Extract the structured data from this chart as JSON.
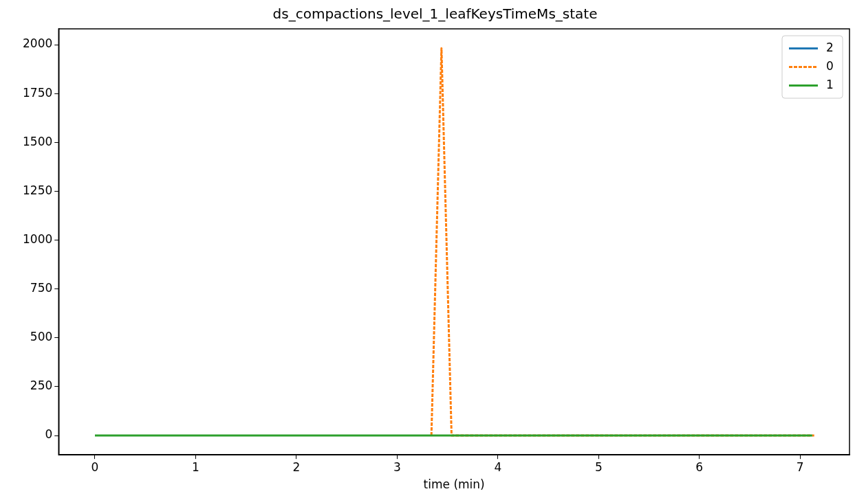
{
  "chart_data": {
    "type": "line",
    "title": "ds_compactions_level_1_leafKeysTimeMs_state",
    "xlabel": "time (min)",
    "xlim": [
      -0.36,
      7.49
    ],
    "xticks": [
      0,
      1,
      2,
      3,
      4,
      5,
      6,
      7
    ],
    "ylim": [
      -99,
      2081
    ],
    "yticks": [
      0,
      250,
      500,
      750,
      1000,
      1250,
      1500,
      1750,
      2000
    ],
    "grid": false,
    "legend": "top right",
    "series": [
      {
        "name": "2",
        "color": "#1f77b4",
        "line_style": "solid"
      },
      {
        "name": "0",
        "color": "#ff7f0e",
        "line_style": "dashed",
        "x": [
          3.34,
          3.44,
          3.54,
          7.14
        ],
        "values": [
          0,
          1982,
          0,
          0
        ]
      },
      {
        "name": "1",
        "color": "#2ca02c",
        "line_style": "solid",
        "x": [
          0,
          7.12
        ],
        "values": [
          0,
          0
        ]
      }
    ]
  }
}
